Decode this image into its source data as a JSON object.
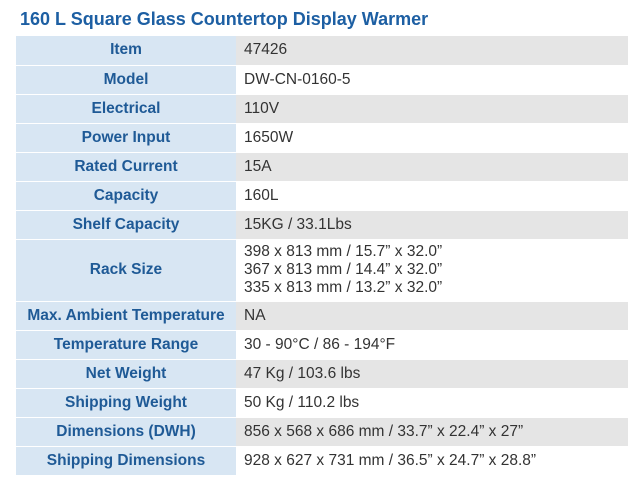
{
  "header": {
    "title": "160 L Square Glass Countertop Display Warmer"
  },
  "table": {
    "rows": [
      {
        "label": "Item",
        "value": [
          "47426"
        ]
      },
      {
        "label": "Model",
        "value": [
          "DW-CN-0160-5"
        ]
      },
      {
        "label": "Electrical",
        "value": [
          "110V"
        ]
      },
      {
        "label": "Power Input",
        "value": [
          "1650W"
        ]
      },
      {
        "label": "Rated Current",
        "value": [
          "15A"
        ]
      },
      {
        "label": "Capacity",
        "value": [
          "160L"
        ]
      },
      {
        "label": "Shelf Capacity",
        "value": [
          "15KG / 33.1Lbs"
        ]
      },
      {
        "label": "Rack Size",
        "value": [
          "398 x 813 mm / 15.7” x 32.0”",
          "367 x 813 mm / 14.4” x 32.0”",
          "335 x 813 mm / 13.2” x 32.0”"
        ]
      },
      {
        "label": "Max. Ambient Temperature",
        "value": [
          "NA"
        ]
      },
      {
        "label": "Temperature Range",
        "value": [
          "30 - 90°C / 86 - 194°F"
        ]
      },
      {
        "label": "Net Weight",
        "value": [
          "47 Kg / 103.6 lbs"
        ]
      },
      {
        "label": "Shipping Weight",
        "value": [
          "50 Kg / 110.2 lbs"
        ]
      },
      {
        "label": "Dimensions (DWH)",
        "value": [
          "856 x 568 x 686 mm / 33.7” x 22.4” x 27”"
        ]
      },
      {
        "label": "Shipping Dimensions",
        "value": [
          "928 x 627 x 731 mm / 36.5” x 24.7” x 28.8”"
        ]
      }
    ]
  }
}
